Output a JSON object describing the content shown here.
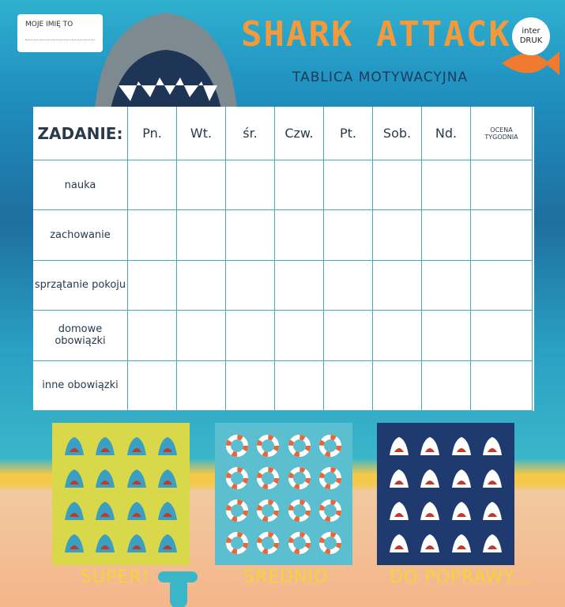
{
  "header": {
    "name_label": "MOJE IMIĘ TO",
    "title": "SHARK ATTACK",
    "subtitle": "TABLICA MOTYWACYJNA",
    "brand": {
      "line1": "inter",
      "line2": "DRUK"
    }
  },
  "table": {
    "columns": [
      "ZADANIE:",
      "Pn.",
      "Wt.",
      "śr.",
      "Czw.",
      "Pt.",
      "Sob.",
      "Nd.",
      "OCENA TYGODNIA"
    ],
    "rows": [
      "nauka",
      "zachowanie",
      "sprzątanie pokoju",
      "domowe obowiązki",
      "inne obowiązki"
    ]
  },
  "stickers": [
    {
      "label": "SUPER!"
    },
    {
      "label": "ŚREDNIO"
    },
    {
      "label": "DO POPRAWY..."
    }
  ]
}
